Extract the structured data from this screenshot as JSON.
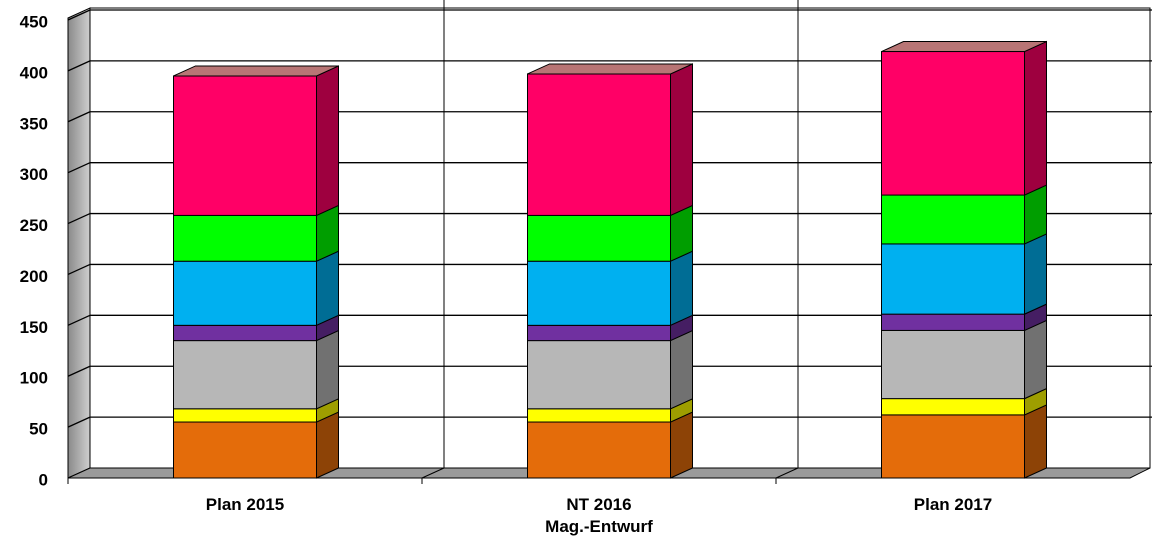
{
  "chart_data": {
    "type": "bar3d_stacked",
    "categories": [
      "Plan 2015",
      "NT 2016\nMag.-Entwurf",
      "Plan 2017"
    ],
    "series": [
      {
        "color": "#e46c0a",
        "values": [
          55,
          55,
          62
        ]
      },
      {
        "color": "#ffff00",
        "values": [
          13,
          13,
          16
        ]
      },
      {
        "color": "#b7b7b7",
        "values": [
          67,
          67,
          67
        ]
      },
      {
        "color": "#7030a0",
        "values": [
          15,
          15,
          16
        ]
      },
      {
        "color": "#00b0f0",
        "values": [
          63,
          63,
          69
        ]
      },
      {
        "color": "#00ff00",
        "values": [
          45,
          45,
          48
        ]
      },
      {
        "color": "#ff0066",
        "values": [
          137,
          139,
          141
        ]
      }
    ],
    "ylim": [
      0,
      450
    ],
    "yticks": [
      0,
      50,
      100,
      150,
      200,
      250,
      300,
      350,
      400,
      450
    ],
    "grid": true
  }
}
